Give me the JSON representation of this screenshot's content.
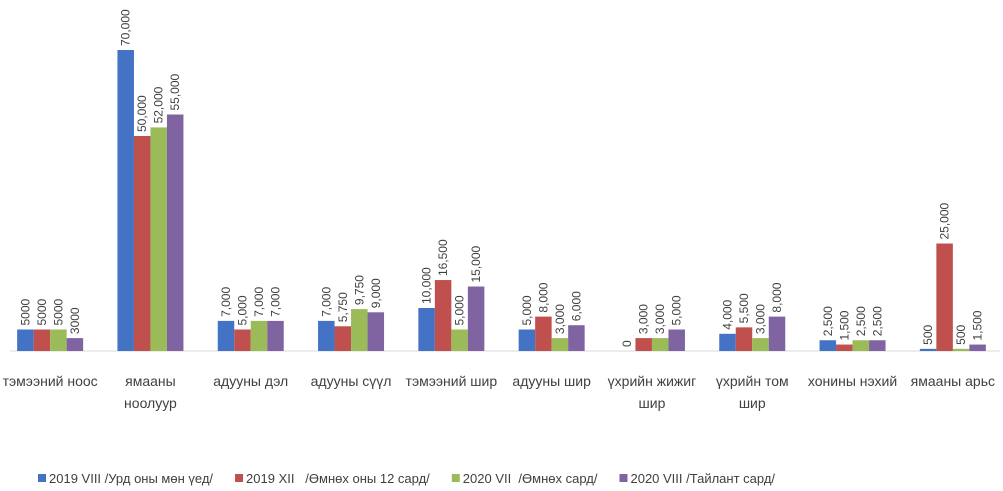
{
  "chart_data": {
    "type": "bar",
    "categories": [
      "тэмээний ноос",
      "ямааны ноолуур",
      "адууны дэл",
      "адууны сүүл",
      "тэмээний шир",
      "адууны шир",
      "үхрийн жижиг шир",
      "үхрийн том шир",
      "хонины нэхий",
      "ямааны арьс"
    ],
    "series": [
      {
        "name": "2019 VIII /Урд оны мөн үед/",
        "color": "#4472c4",
        "values": [
          5000,
          70000,
          7000,
          7000,
          10000,
          5000,
          0,
          4000,
          2500,
          500
        ],
        "value_labels": [
          "5000",
          "70,000",
          "7,000",
          "7,000",
          "10,000",
          "5,000",
          "0",
          "4,000",
          "2,500",
          "500"
        ]
      },
      {
        "name": "2019 XII   /Өмнөх оны 12 сард/",
        "color": "#c0504d",
        "values": [
          5000,
          50000,
          5000,
          5750,
          16500,
          8000,
          3000,
          5500,
          1500,
          25000
        ],
        "value_labels": [
          "5000",
          "50,000",
          "5,000",
          "5,750",
          "16,500",
          "8,000",
          "3,000",
          "5,500",
          "1,500",
          "25,000"
        ]
      },
      {
        "name": "2020 VII  /Өмнөх сард/",
        "color": "#9bbb59",
        "values": [
          5000,
          52000,
          7000,
          9750,
          5000,
          3000,
          3000,
          3000,
          2500,
          500
        ],
        "value_labels": [
          "5000",
          "52,000",
          "7,000",
          "9,750",
          "5,000",
          "3,000",
          "3,000",
          "3,000",
          "2,500",
          "500"
        ]
      },
      {
        "name": "2020 VIII /Тайлант сард/",
        "color": "#8064a2",
        "values": [
          3000,
          55000,
          7000,
          9000,
          15000,
          6000,
          5000,
          8000,
          2500,
          1500
        ],
        "value_labels": [
          "3000",
          "55,000",
          "7,000",
          "9,000",
          "15,000",
          "6,000",
          "5,000",
          "8,000",
          "2,500",
          "1,500"
        ]
      }
    ],
    "ylim": [
      0,
      70000
    ],
    "legend": "bottom"
  }
}
